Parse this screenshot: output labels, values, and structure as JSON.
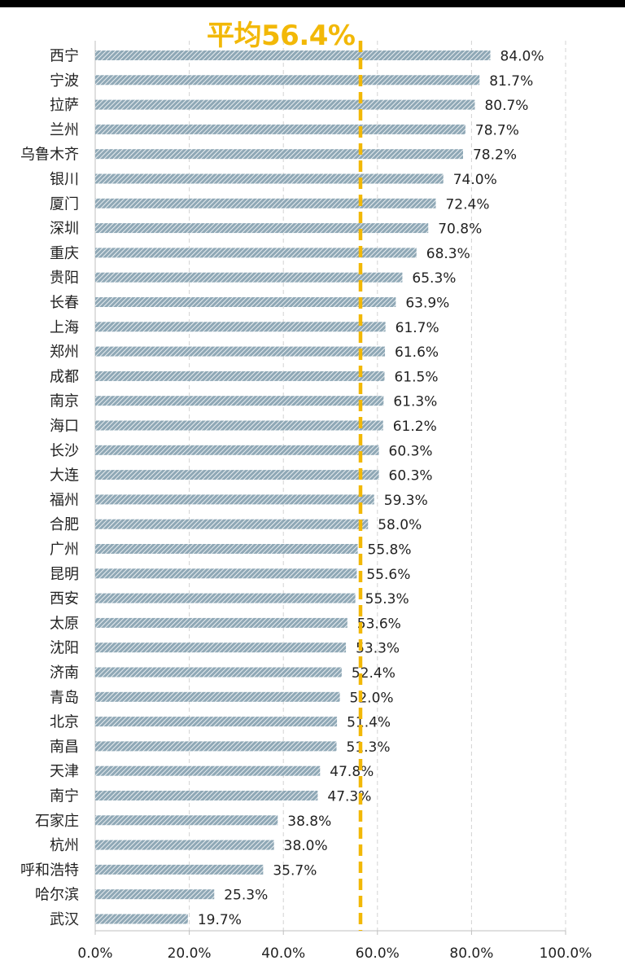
{
  "average_label": "平均56.4%",
  "colors": {
    "bar": "#8fa8b6",
    "bar_stripe": "#ffffff",
    "average_line": "#f2b807",
    "grid": "#d3d3d3",
    "axis": "#bfbfbf",
    "text": "#222222"
  },
  "chart_data": {
    "type": "bar",
    "orientation": "horizontal",
    "categories": [
      "西宁",
      "宁波",
      "拉萨",
      "兰州",
      "乌鲁木齐",
      "银川",
      "厦门",
      "深圳",
      "重庆",
      "贵阳",
      "长春",
      "上海",
      "郑州",
      "成都",
      "南京",
      "海口",
      "长沙",
      "大连",
      "福州",
      "合肥",
      "广州",
      "昆明",
      "西安",
      "太原",
      "沈阳",
      "济南",
      "青岛",
      "北京",
      "南昌",
      "天津",
      "南宁",
      "石家庄",
      "杭州",
      "呼和浩特",
      "哈尔滨",
      "武汉"
    ],
    "values": [
      84.0,
      81.7,
      80.7,
      78.7,
      78.2,
      74.0,
      72.4,
      70.8,
      68.3,
      65.3,
      63.9,
      61.7,
      61.6,
      61.5,
      61.3,
      61.2,
      60.3,
      60.3,
      59.3,
      58.0,
      55.8,
      55.6,
      55.3,
      53.6,
      53.3,
      52.4,
      52.0,
      51.4,
      51.3,
      47.8,
      47.3,
      38.8,
      38.0,
      35.7,
      25.3,
      19.7
    ],
    "value_labels": [
      "84.0%",
      "81.7%",
      "80.7%",
      "78.7%",
      "78.2%",
      "74.0%",
      "72.4%",
      "70.8%",
      "68.3%",
      "65.3%",
      "63.9%",
      "61.7%",
      "61.6%",
      "61.5%",
      "61.3%",
      "61.2%",
      "60.3%",
      "60.3%",
      "59.3%",
      "58.0%",
      "55.8%",
      "55.6%",
      "55.3%",
      "53.6%",
      "53.3%",
      "52.4%",
      "52.0%",
      "51.4%",
      "51.3%",
      "47.8%",
      "47.3%",
      "38.8%",
      "38.0%",
      "35.7%",
      "25.3%",
      "19.7%"
    ],
    "average": 56.4,
    "xlim": [
      0,
      100
    ],
    "x_ticks": [
      0,
      20,
      40,
      60,
      80,
      100
    ],
    "x_tick_labels": [
      "0.0%",
      "20.0%",
      "40.0%",
      "60.0%",
      "80.0%",
      "100.0%"
    ],
    "grid": "vertical dashed",
    "title": "",
    "xlabel": "",
    "ylabel": ""
  }
}
